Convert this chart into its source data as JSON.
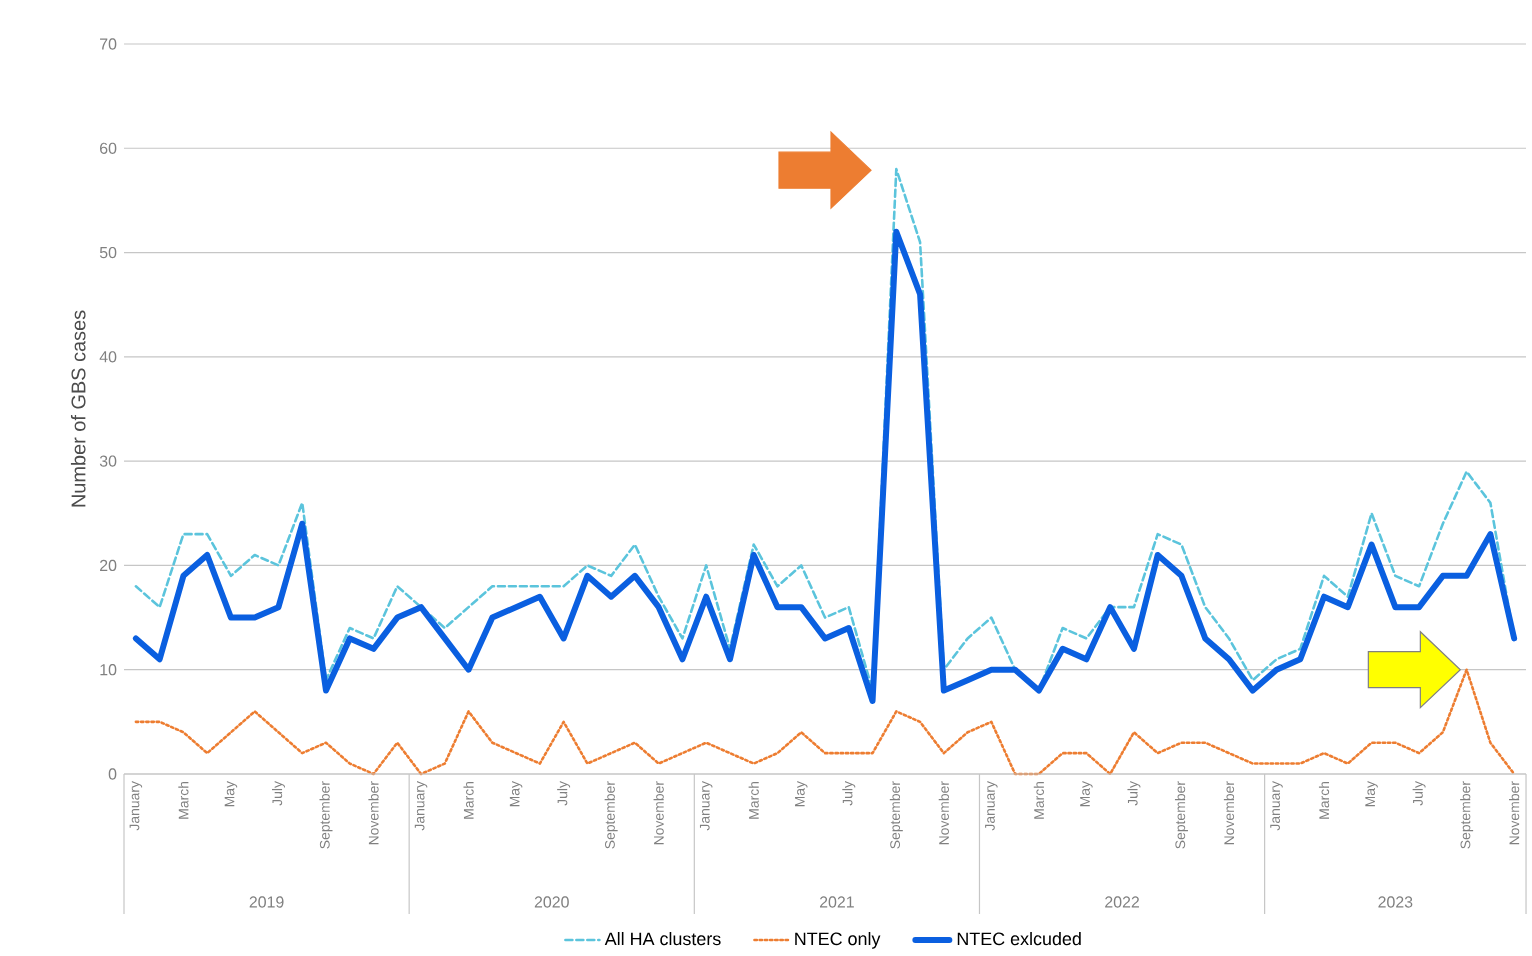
{
  "chart_data": {
    "type": "line",
    "ylabel": "Number of GBS cases",
    "categories": [
      "January",
      null,
      "March",
      null,
      "May",
      null,
      "July",
      null,
      "September",
      null,
      "November",
      null,
      "January",
      null,
      "March",
      null,
      "May",
      null,
      "July",
      null,
      "September",
      null,
      "November",
      null,
      "January",
      null,
      "March",
      null,
      "May",
      null,
      "July",
      null,
      "September",
      null,
      "November",
      null,
      "January",
      null,
      "March",
      null,
      "May",
      null,
      "July",
      null,
      "September",
      null,
      "November",
      null,
      "January",
      null,
      "March",
      null,
      "May",
      null,
      "July",
      null,
      "September",
      null,
      "November"
    ],
    "annotations": [
      "2019",
      "2020",
      "2021",
      "2022",
      "2023"
    ],
    "series": [
      {
        "name": "All HA clusters",
        "color": "#5bc4dc",
        "line_style": "dashed",
        "values": [
          18,
          16,
          23,
          23,
          19,
          21,
          20,
          26,
          9,
          14,
          13,
          18,
          16,
          14,
          16,
          18,
          18,
          18,
          18,
          20,
          19,
          22,
          17,
          13,
          20,
          12,
          22,
          18,
          20,
          15,
          16,
          8,
          58,
          51,
          10,
          13,
          15,
          10,
          8,
          14,
          13,
          16,
          16,
          23,
          22,
          16,
          13,
          9,
          11,
          12,
          19,
          17,
          25,
          19,
          18,
          24,
          29,
          26,
          13
        ]
      },
      {
        "name": "NTEC only",
        "color": "#ed7d31",
        "line_style": "dotted",
        "values": [
          5,
          5,
          4,
          2,
          4,
          6,
          4,
          2,
          3,
          1,
          0,
          3,
          0,
          1,
          6,
          3,
          2,
          1,
          5,
          1,
          2,
          3,
          1,
          2,
          3,
          2,
          1,
          2,
          4,
          2,
          2,
          2,
          6,
          5,
          2,
          4,
          5,
          0,
          0,
          2,
          2,
          0,
          4,
          2,
          3,
          3,
          2,
          1,
          1,
          1,
          2,
          1,
          3,
          3,
          2,
          4,
          10,
          3,
          0
        ]
      },
      {
        "name": "NTEC exlcuded",
        "color": "#0a5fe0",
        "line_style": "solid",
        "values": [
          13,
          11,
          19,
          21,
          15,
          15,
          16,
          24,
          8,
          13,
          12,
          15,
          16,
          13,
          10,
          15,
          16,
          17,
          13,
          19,
          17,
          19,
          16,
          11,
          17,
          11,
          21,
          16,
          16,
          13,
          14,
          7,
          52,
          46,
          8,
          9,
          10,
          10,
          8,
          12,
          11,
          16,
          12,
          21,
          19,
          13,
          11,
          8,
          10,
          11,
          17,
          16,
          22,
          16,
          16,
          19,
          19,
          23,
          13
        ]
      }
    ],
    "ylim": [
      0,
      70
    ],
    "yticks": [
      0,
      10,
      20,
      30,
      40,
      50,
      60,
      70
    ],
    "grid": "y",
    "legend": "bottom",
    "marker": "none"
  }
}
